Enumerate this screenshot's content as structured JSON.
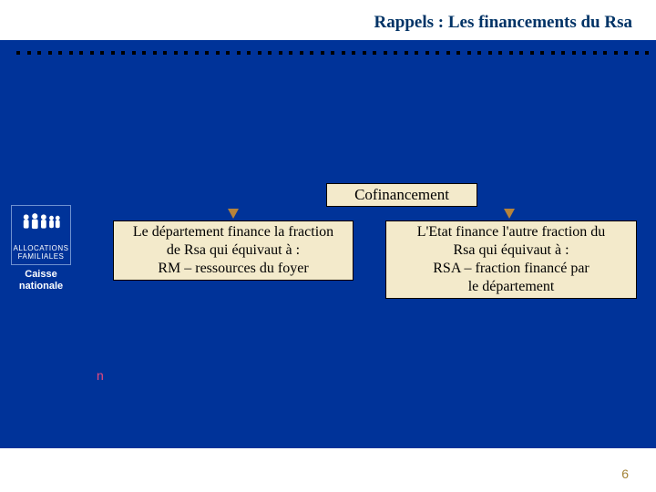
{
  "title": "Rappels : Les financements du Rsa",
  "colors": {
    "background_band": "#003399",
    "box_fill": "#f3eacb",
    "box_border": "#000000",
    "title_color": "#003366",
    "arrow_color": "#b6833a",
    "page_num_color": "#a38336",
    "n_mark_color": "#e84a7e",
    "dot_color": "#000000"
  },
  "logo": {
    "line1": "ALLOCATIONS",
    "line2": "FAMILIALES",
    "caption_line1": "Caisse",
    "caption_line2": "nationale"
  },
  "diagram": {
    "top_box": "Cofinancement",
    "left_box": {
      "l1": "Le département finance la fraction",
      "l2": "de Rsa qui équivaut à :",
      "l3": "RM   –   ressources du foyer"
    },
    "right_box": {
      "l1": "L'Etat finance l'autre fraction du",
      "l2": "Rsa qui équivaut à :",
      "l3": "RSA   –   fraction financé par",
      "l4": "le département"
    }
  },
  "n_mark": "n",
  "page_number": "6",
  "dot_count": 62
}
